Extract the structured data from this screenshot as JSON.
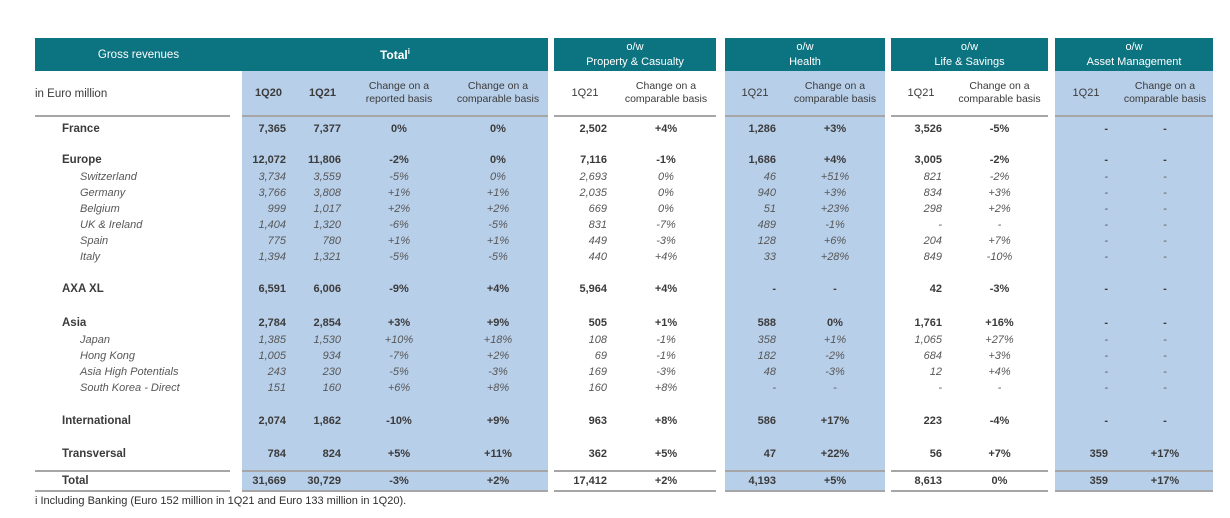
{
  "colors": {
    "teal": "#0c7380",
    "shaded_column_blue": "#b8cfe9",
    "rule_gray": "#a6a6a6"
  },
  "table": {
    "corner_label": "Gross revenues",
    "unit_label": "in Euro million",
    "footnote": "i Including Banking (Euro 152 million in 1Q21 and Euro 133 million in 1Q20).",
    "groups": [
      {
        "id": "total",
        "title": "Total",
        "superscript": "i",
        "shaded": true,
        "columns": [
          "1Q20",
          "1Q21",
          "Change on a reported basis",
          "Change on a comparable basis"
        ]
      },
      {
        "id": "property-casualty",
        "title_top": "o/w",
        "title": "Property & Casualty",
        "shaded": false,
        "columns": [
          "1Q21",
          "Change on a comparable basis"
        ]
      },
      {
        "id": "health",
        "title_top": "o/w",
        "title": "Health",
        "shaded": true,
        "columns": [
          "1Q21",
          "Change on a comparable basis"
        ]
      },
      {
        "id": "life-savings",
        "title_top": "o/w",
        "title": "Life & Savings",
        "shaded": false,
        "columns": [
          "1Q21",
          "Change on a comparable basis"
        ]
      },
      {
        "id": "asset-management",
        "title_top": "o/w",
        "title": "Asset Management",
        "shaded": true,
        "columns": [
          "1Q21",
          "Change on a comparable basis"
        ]
      }
    ],
    "rows": [
      {
        "label": "France",
        "type": "main",
        "values": [
          "7,365",
          "7,377",
          "0%",
          "0%",
          "2,502",
          "+4%",
          "1,286",
          "+3%",
          "3,526",
          "-5%",
          "-",
          "-"
        ]
      },
      {
        "label": "Europe",
        "type": "main",
        "values": [
          "12,072",
          "11,806",
          "-2%",
          "0%",
          "7,116",
          "-1%",
          "1,686",
          "+4%",
          "3,005",
          "-2%",
          "-",
          "-"
        ]
      },
      {
        "label": "Switzerland",
        "type": "sub",
        "values": [
          "3,734",
          "3,559",
          "-5%",
          "0%",
          "2,693",
          "0%",
          "46",
          "+51%",
          "821",
          "-2%",
          "-",
          "-"
        ]
      },
      {
        "label": "Germany",
        "type": "sub",
        "values": [
          "3,766",
          "3,808",
          "+1%",
          "+1%",
          "2,035",
          "0%",
          "940",
          "+3%",
          "834",
          "+3%",
          "-",
          "-"
        ]
      },
      {
        "label": "Belgium",
        "type": "sub",
        "values": [
          "999",
          "1,017",
          "+2%",
          "+2%",
          "669",
          "0%",
          "51",
          "+23%",
          "298",
          "+2%",
          "-",
          "-"
        ]
      },
      {
        "label": "UK & Ireland",
        "type": "sub",
        "values": [
          "1,404",
          "1,320",
          "-6%",
          "-5%",
          "831",
          "-7%",
          "489",
          "-1%",
          "-",
          "-",
          "-",
          "-"
        ]
      },
      {
        "label": "Spain",
        "type": "sub",
        "values": [
          "775",
          "780",
          "+1%",
          "+1%",
          "449",
          "-3%",
          "128",
          "+6%",
          "204",
          "+7%",
          "-",
          "-"
        ]
      },
      {
        "label": "Italy",
        "type": "sub",
        "values": [
          "1,394",
          "1,321",
          "-5%",
          "-5%",
          "440",
          "+4%",
          "33",
          "+28%",
          "849",
          "-10%",
          "-",
          "-"
        ]
      },
      {
        "label": "AXA XL",
        "type": "main",
        "values": [
          "6,591",
          "6,006",
          "-9%",
          "+4%",
          "5,964",
          "+4%",
          "-",
          "-",
          "42",
          "-3%",
          "-",
          "-"
        ]
      },
      {
        "label": "Asia",
        "type": "main",
        "values": [
          "2,784",
          "2,854",
          "+3%",
          "+9%",
          "505",
          "+1%",
          "588",
          "0%",
          "1,761",
          "+16%",
          "-",
          "-"
        ]
      },
      {
        "label": "Japan",
        "type": "sub",
        "values": [
          "1,385",
          "1,530",
          "+10%",
          "+18%",
          "108",
          "-1%",
          "358",
          "+1%",
          "1,065",
          "+27%",
          "-",
          "-"
        ]
      },
      {
        "label": "Hong Kong",
        "type": "sub",
        "values": [
          "1,005",
          "934",
          "-7%",
          "+2%",
          "69",
          "-1%",
          "182",
          "-2%",
          "684",
          "+3%",
          "-",
          "-"
        ]
      },
      {
        "label": "Asia High Potentials",
        "type": "sub",
        "values": [
          "243",
          "230",
          "-5%",
          "-3%",
          "169",
          "-3%",
          "48",
          "-3%",
          "12",
          "+4%",
          "-",
          "-"
        ]
      },
      {
        "label": "South Korea - Direct",
        "type": "sub",
        "values": [
          "151",
          "160",
          "+6%",
          "+8%",
          "160",
          "+8%",
          "-",
          "-",
          "-",
          "-",
          "-",
          "-"
        ]
      },
      {
        "label": "International",
        "type": "main",
        "values": [
          "2,074",
          "1,862",
          "-10%",
          "+9%",
          "963",
          "+8%",
          "586",
          "+17%",
          "223",
          "-4%",
          "-",
          "-"
        ]
      },
      {
        "label": "Transversal",
        "type": "main",
        "values": [
          "784",
          "824",
          "+5%",
          "+11%",
          "362",
          "+5%",
          "47",
          "+22%",
          "56",
          "+7%",
          "359",
          "+17%"
        ]
      },
      {
        "label": "Total",
        "type": "total",
        "values": [
          "31,669",
          "30,729",
          "-3%",
          "+2%",
          "17,412",
          "+2%",
          "4,193",
          "+5%",
          "8,613",
          "0%",
          "359",
          "+17%"
        ]
      }
    ]
  }
}
